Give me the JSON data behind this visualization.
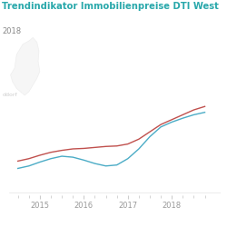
{
  "title": "Trendindikator Immobilienpreise DTI West",
  "subtitle": "2018",
  "title_color": "#29a8ab",
  "subtitle_color": "#888888",
  "background_color": "#ffffff",
  "line1_color": "#c0504d",
  "line2_color": "#4bacc6",
  "x_tick_labels_major": [
    "2015",
    "2016",
    "2017",
    "2018"
  ],
  "x_tick_positions_major": [
    2015.0,
    2016.0,
    2017.0,
    2018.0
  ],
  "line1_y": [
    100.0,
    100.5,
    101.2,
    101.8,
    102.2,
    102.5,
    102.6,
    102.8,
    103.0,
    103.1,
    103.5,
    104.5,
    106.0,
    107.5,
    108.5,
    109.5,
    110.5,
    111.2
  ],
  "line2_y": [
    98.5,
    99.0,
    99.8,
    100.5,
    101.0,
    100.8,
    100.2,
    99.5,
    99.0,
    99.2,
    100.5,
    102.5,
    105.0,
    107.0,
    108.0,
    108.8,
    109.5,
    110.0
  ],
  "x_values": [
    2014.5,
    2014.75,
    2015.0,
    2015.25,
    2015.5,
    2015.75,
    2016.0,
    2016.25,
    2016.5,
    2016.75,
    2017.0,
    2017.25,
    2017.5,
    2017.75,
    2018.0,
    2018.25,
    2018.5,
    2018.75
  ],
  "xlim": [
    2014.3,
    2019.1
  ],
  "ylim": [
    93,
    120
  ],
  "map_alpha": 0.1,
  "map_color": "#aaaaaa"
}
